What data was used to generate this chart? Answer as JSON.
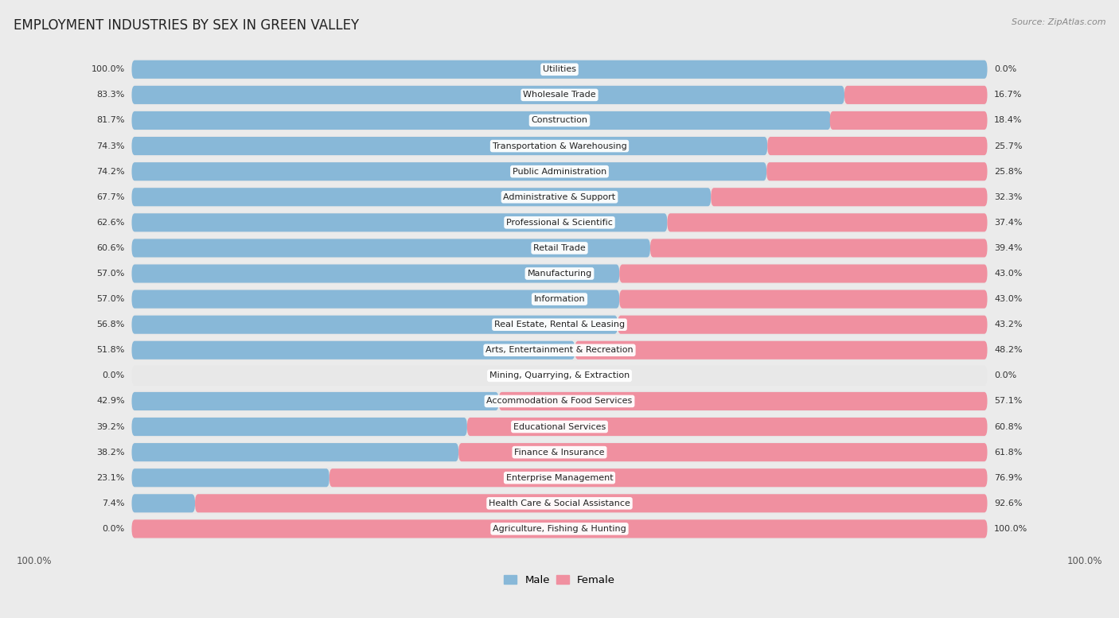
{
  "title": "EMPLOYMENT INDUSTRIES BY SEX IN GREEN VALLEY",
  "source": "Source: ZipAtlas.com",
  "categories": [
    "Utilities",
    "Wholesale Trade",
    "Construction",
    "Transportation & Warehousing",
    "Public Administration",
    "Administrative & Support",
    "Professional & Scientific",
    "Retail Trade",
    "Manufacturing",
    "Information",
    "Real Estate, Rental & Leasing",
    "Arts, Entertainment & Recreation",
    "Mining, Quarrying, & Extraction",
    "Accommodation & Food Services",
    "Educational Services",
    "Finance & Insurance",
    "Enterprise Management",
    "Health Care & Social Assistance",
    "Agriculture, Fishing & Hunting"
  ],
  "male": [
    100.0,
    83.3,
    81.7,
    74.3,
    74.2,
    67.7,
    62.6,
    60.6,
    57.0,
    57.0,
    56.8,
    51.8,
    0.0,
    42.9,
    39.2,
    38.2,
    23.1,
    7.4,
    0.0
  ],
  "female": [
    0.0,
    16.7,
    18.4,
    25.7,
    25.8,
    32.3,
    37.4,
    39.4,
    43.0,
    43.0,
    43.2,
    48.2,
    0.0,
    57.1,
    60.8,
    61.8,
    76.9,
    92.6,
    100.0
  ],
  "male_color": "#88b8d8",
  "female_color": "#f090a0",
  "background_color": "#ebebeb",
  "row_bg_color": "#f5f5f5",
  "bar_row_bg": "#e0e0e0",
  "title_fontsize": 12,
  "label_fontsize": 8.0,
  "value_fontsize": 8.0,
  "x_axis_label": "100.0%"
}
